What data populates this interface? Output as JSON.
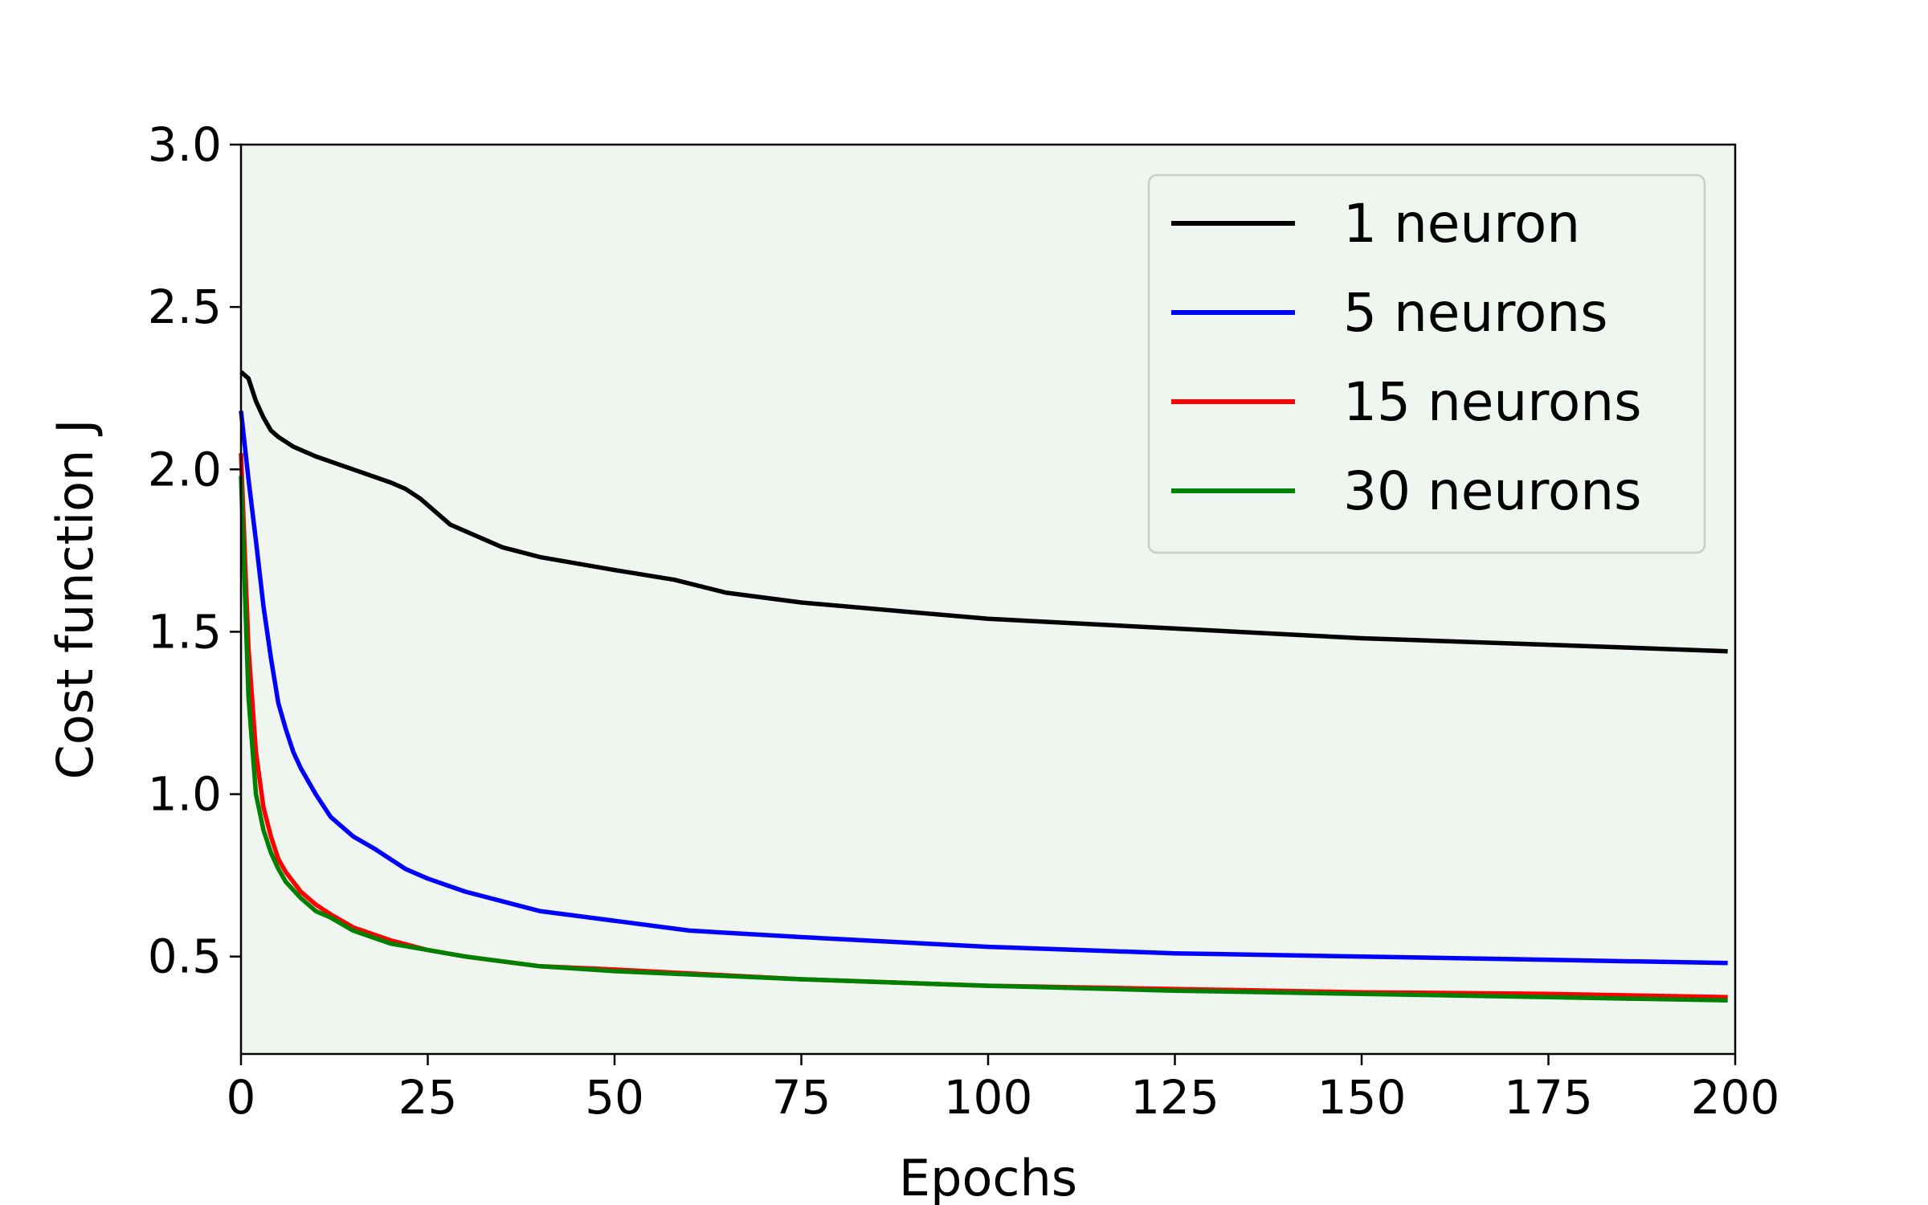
{
  "chart_data": {
    "type": "line",
    "xlabel": "Epochs",
    "ylabel": "Cost function J",
    "xlim": [
      0,
      200
    ],
    "ylim": [
      0.2,
      3.0
    ],
    "xticks": [
      0,
      25,
      50,
      75,
      100,
      125,
      150,
      175,
      200
    ],
    "yticks": [
      0.5,
      1.0,
      1.5,
      2.0,
      2.5,
      3.0
    ],
    "xtick_labels": [
      "0",
      "25",
      "50",
      "75",
      "100",
      "125",
      "150",
      "175",
      "200"
    ],
    "ytick_labels": [
      "0.5",
      "1.0",
      "1.5",
      "2.0",
      "2.5",
      "3.0"
    ],
    "grid": false,
    "legend_position": "top-right",
    "plot_background": "#eff5ef",
    "series": [
      {
        "name": "1 neuron",
        "color": "#000000",
        "x": [
          0,
          1,
          2,
          3,
          4,
          5,
          7,
          10,
          15,
          20,
          22,
          24,
          26,
          28,
          30,
          35,
          40,
          50,
          58,
          65,
          75,
          90,
          100,
          125,
          150,
          175,
          199
        ],
        "y": [
          2.3,
          2.28,
          2.21,
          2.16,
          2.12,
          2.1,
          2.07,
          2.04,
          2.0,
          1.96,
          1.94,
          1.91,
          1.87,
          1.83,
          1.81,
          1.76,
          1.73,
          1.69,
          1.66,
          1.62,
          1.59,
          1.56,
          1.54,
          1.51,
          1.48,
          1.46,
          1.44
        ]
      },
      {
        "name": "5 neurons",
        "color": "#0000ff",
        "x": [
          0,
          1,
          2,
          3,
          4,
          5,
          6,
          7,
          8,
          10,
          12,
          15,
          18,
          20,
          22,
          25,
          30,
          40,
          50,
          60,
          75,
          100,
          125,
          150,
          175,
          199
        ],
        "y": [
          2.18,
          1.97,
          1.78,
          1.58,
          1.42,
          1.28,
          1.2,
          1.13,
          1.08,
          1.0,
          0.93,
          0.87,
          0.83,
          0.8,
          0.77,
          0.74,
          0.7,
          0.64,
          0.61,
          0.58,
          0.56,
          0.53,
          0.51,
          0.5,
          0.49,
          0.48
        ]
      },
      {
        "name": "15 neurons",
        "color": "#ff0000",
        "x": [
          0,
          1,
          2,
          3,
          4,
          5,
          6,
          8,
          10,
          12,
          15,
          20,
          25,
          30,
          40,
          50,
          75,
          100,
          125,
          150,
          175,
          199
        ],
        "y": [
          2.05,
          1.45,
          1.13,
          0.96,
          0.87,
          0.8,
          0.76,
          0.7,
          0.66,
          0.63,
          0.59,
          0.55,
          0.52,
          0.5,
          0.47,
          0.46,
          0.43,
          0.41,
          0.4,
          0.39,
          0.385,
          0.375
        ]
      },
      {
        "name": "30 neurons",
        "color": "#008000",
        "x": [
          0,
          1,
          2,
          3,
          4,
          5,
          6,
          8,
          10,
          12,
          15,
          20,
          25,
          30,
          40,
          50,
          75,
          100,
          125,
          150,
          175,
          199
        ],
        "y": [
          1.98,
          1.3,
          1.0,
          0.89,
          0.82,
          0.77,
          0.73,
          0.68,
          0.64,
          0.62,
          0.58,
          0.54,
          0.52,
          0.5,
          0.47,
          0.455,
          0.43,
          0.41,
          0.395,
          0.385,
          0.375,
          0.365
        ]
      }
    ]
  }
}
